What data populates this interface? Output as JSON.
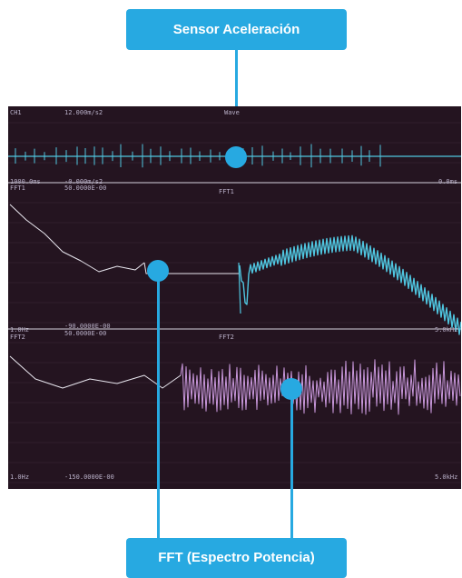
{
  "callouts": {
    "top_label": "Sensor Aceleración",
    "bottom_label": "FFT (Espectro Potencia)"
  },
  "screen": {
    "panel1": {
      "channel": "CH1",
      "scale": "12.000m/s2",
      "mode": "Wave",
      "time_start": "1000.0ms",
      "offset": "-0.000m/s2",
      "time_end": "0.0ms"
    },
    "panel2": {
      "channel": "FFT1",
      "scale": "50.0000E-00",
      "mode": "FFT1",
      "freq_start": "1.0Hz",
      "min": "-90.0000E-00",
      "freq_end": "5.0kHz"
    },
    "panel3": {
      "channel": "FFT2",
      "scale": "50.0000E-00",
      "mode": "FFT2",
      "freq_start": "1.0Hz",
      "min": "-150.0000E-00",
      "freq_end": "5.0kHz"
    }
  },
  "colors": {
    "accent": "#27a9e1",
    "screen_bg": "#241420",
    "trace_cyan": "#4fc6e0",
    "trace_pink": "#c998dc",
    "trace_white": "#e8e6ee"
  }
}
